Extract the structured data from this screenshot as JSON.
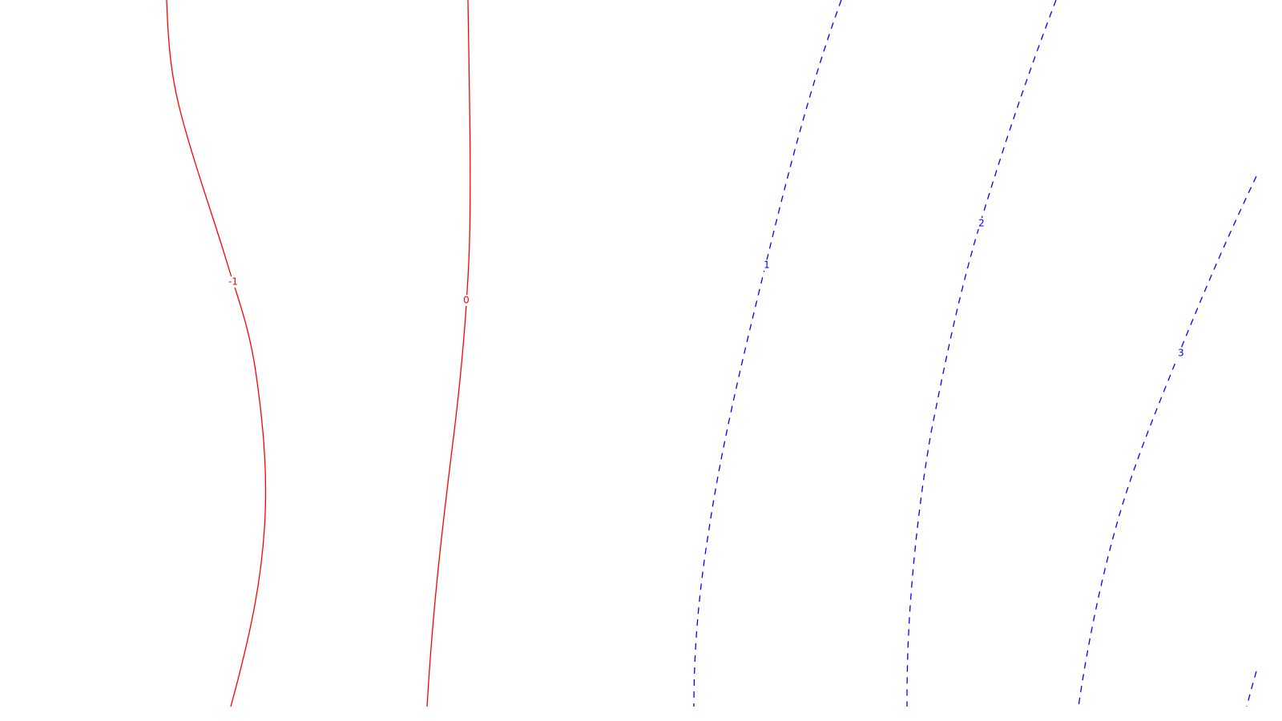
{
  "chart_data": {
    "type": "contour",
    "title": "",
    "xlabel": "",
    "ylabel": "",
    "grid": false,
    "colors": {
      "negative_and_zero": "#ff0000",
      "positive": "#0000ff",
      "background": "#ffffff"
    },
    "line_styles": {
      "negative_and_zero": "solid",
      "positive": "dashed"
    },
    "contour_levels": [
      {
        "level": -1,
        "label": "-1",
        "color": "#ff0000",
        "dash": "solid"
      },
      {
        "level": 0,
        "label": "0",
        "color": "#ff0000",
        "dash": "solid"
      },
      {
        "level": 1,
        "label": "1",
        "color": "#0000ff",
        "dash": "dashed"
      },
      {
        "level": 2,
        "label": "2",
        "color": "#0000ff",
        "dash": "dashed"
      },
      {
        "level": 3,
        "label": "3",
        "color": "#0000ff",
        "dash": "dashed"
      },
      {
        "level": 4,
        "label": "",
        "color": "#0000ff",
        "dash": "dashed"
      }
    ]
  }
}
